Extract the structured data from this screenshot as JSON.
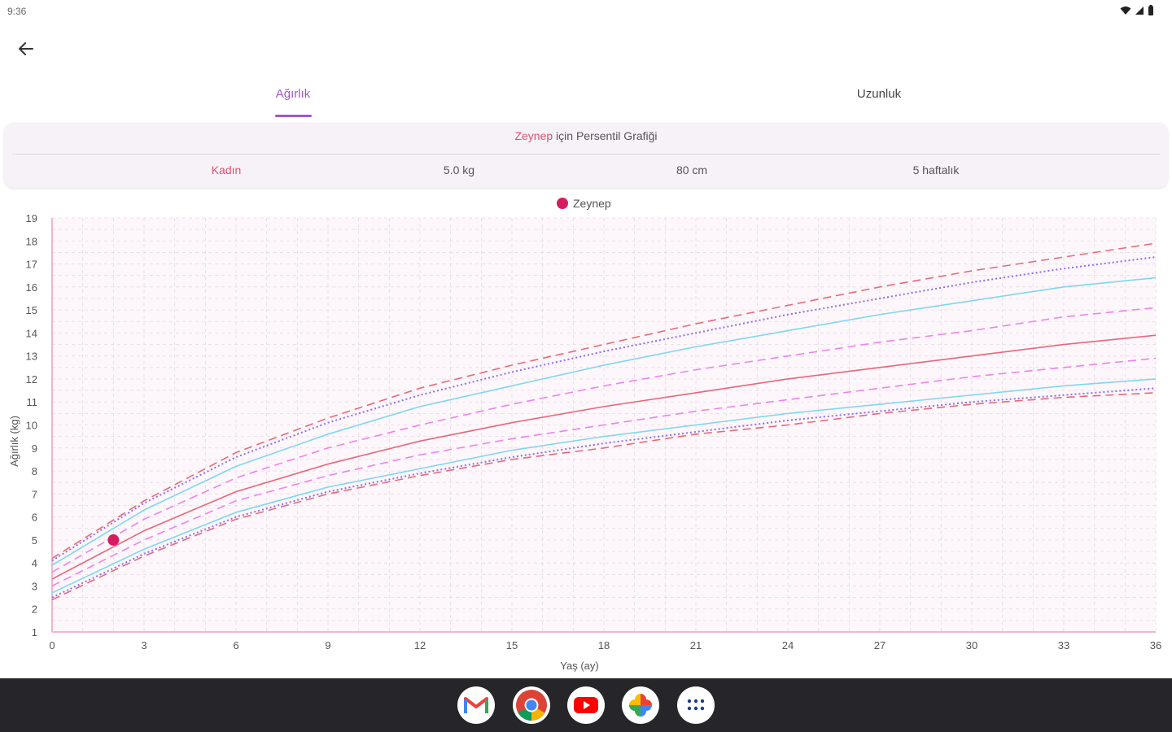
{
  "status_bar": {
    "time": "9:36"
  },
  "tabs": [
    {
      "label": "Ağırlık",
      "active": true
    },
    {
      "label": "Uzunluk",
      "active": false
    }
  ],
  "info_card": {
    "title_name": "Zeynep",
    "title_rest": " için Persentil Grafiği",
    "gender": "Kadın",
    "weight": "5.0 kg",
    "height": "80 cm",
    "age": "5 haftalık"
  },
  "dock": {
    "icons": [
      "gmail-icon",
      "chrome-icon",
      "youtube-icon",
      "photos-icon",
      "app-drawer-icon"
    ]
  },
  "colors": {
    "accent": "#a257c9",
    "name_pink": "#e0506f",
    "point": "#d81b60",
    "p_outer": "#e56a78",
    "p_purple": "#8e6ee8",
    "p_cyan": "#7fd7ee",
    "p_magenta": "#ee82ee",
    "p_median": "#e8667a"
  },
  "chart_data": {
    "type": "line",
    "title": "",
    "xlabel": "Yaş (ay)",
    "ylabel": "Ağırlık (kg)",
    "xlim": [
      0,
      36
    ],
    "ylim": [
      1,
      19
    ],
    "x_ticks": [
      "0",
      "3",
      "6",
      "9",
      "12",
      "15",
      "18",
      "21",
      "24",
      "27",
      "30",
      "33",
      "36"
    ],
    "y_ticks": [
      "1",
      "2",
      "3",
      "4",
      "5",
      "6",
      "7",
      "8",
      "9",
      "10",
      "11",
      "12",
      "13",
      "14",
      "15",
      "16",
      "17",
      "18",
      "19"
    ],
    "grid": true,
    "legend": [
      "Zeynep"
    ],
    "legend_position": "top-center",
    "x": [
      0,
      3,
      6,
      9,
      12,
      15,
      18,
      21,
      24,
      27,
      30,
      33,
      36
    ],
    "percentile_curves": [
      {
        "style": "dashed",
        "color_key": "p_outer",
        "values": [
          2.4,
          4.3,
          5.9,
          7.0,
          7.8,
          8.5,
          9.0,
          9.6,
          10.0,
          10.5,
          10.9,
          11.2,
          11.4
        ]
      },
      {
        "style": "dotted",
        "color_key": "p_purple",
        "values": [
          2.5,
          4.4,
          6.0,
          7.1,
          7.9,
          8.6,
          9.2,
          9.7,
          10.2,
          10.6,
          11.0,
          11.3,
          11.6
        ]
      },
      {
        "style": "solid",
        "color_key": "p_cyan",
        "values": [
          2.7,
          4.6,
          6.2,
          7.3,
          8.1,
          8.9,
          9.5,
          10.0,
          10.5,
          10.9,
          11.3,
          11.7,
          12.0
        ]
      },
      {
        "style": "dashed",
        "color_key": "p_magenta",
        "values": [
          3.0,
          5.0,
          6.7,
          7.8,
          8.7,
          9.4,
          10.0,
          10.6,
          11.1,
          11.6,
          12.1,
          12.5,
          12.9
        ]
      },
      {
        "style": "solid",
        "color_key": "p_median",
        "values": [
          3.3,
          5.4,
          7.1,
          8.3,
          9.3,
          10.1,
          10.8,
          11.4,
          12.0,
          12.5,
          13.0,
          13.5,
          13.9
        ]
      },
      {
        "style": "dashed",
        "color_key": "p_magenta",
        "values": [
          3.6,
          5.9,
          7.7,
          9.0,
          10.0,
          10.9,
          11.7,
          12.4,
          13.0,
          13.6,
          14.1,
          14.7,
          15.1
        ]
      },
      {
        "style": "solid",
        "color_key": "p_cyan",
        "values": [
          3.9,
          6.3,
          8.2,
          9.6,
          10.8,
          11.7,
          12.6,
          13.4,
          14.1,
          14.8,
          15.4,
          16.0,
          16.4
        ]
      },
      {
        "style": "dotted",
        "color_key": "p_purple",
        "values": [
          4.1,
          6.6,
          8.6,
          10.1,
          11.3,
          12.3,
          13.2,
          14.0,
          14.8,
          15.5,
          16.2,
          16.8,
          17.3
        ]
      },
      {
        "style": "dashed",
        "color_key": "p_outer",
        "values": [
          4.2,
          6.7,
          8.8,
          10.3,
          11.6,
          12.6,
          13.5,
          14.4,
          15.2,
          16.0,
          16.7,
          17.3,
          17.9
        ]
      }
    ],
    "series": [
      {
        "name": "Zeynep",
        "x": [
          2
        ],
        "values": [
          5.0
        ]
      }
    ]
  }
}
